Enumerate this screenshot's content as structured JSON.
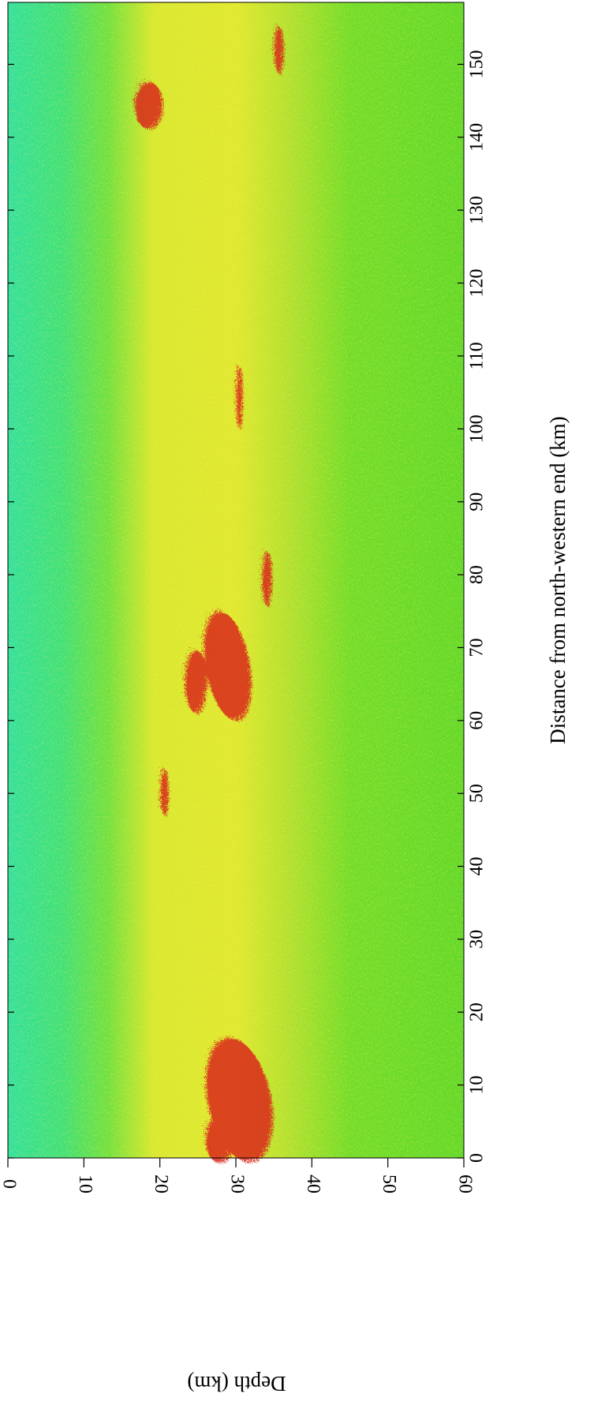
{
  "chart_data": {
    "type": "heatmap",
    "xlabel": "Distance from north-western end (km)",
    "ylabel": "Depth (km)",
    "xlim": [
      0,
      158.5
    ],
    "xticks": [
      0,
      10,
      20,
      30,
      40,
      50,
      60,
      70,
      80,
      90,
      100,
      110,
      120,
      130,
      140,
      150
    ],
    "ylim": [
      0,
      60
    ],
    "yticks": [
      0,
      10,
      20,
      30,
      40,
      50,
      60
    ]
  }
}
